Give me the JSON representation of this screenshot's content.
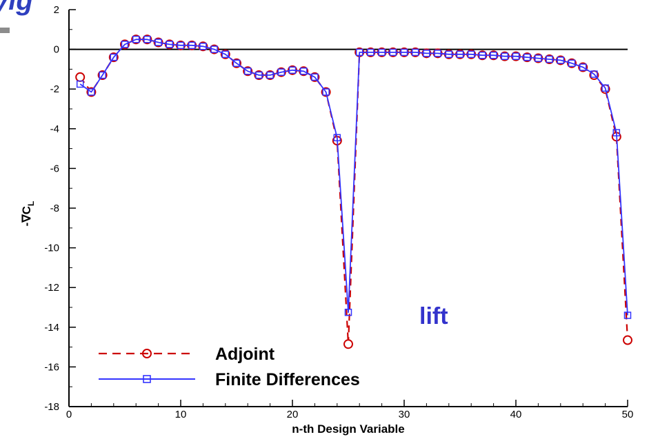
{
  "page": {
    "title_fragment": "yig"
  },
  "chart_data": {
    "type": "line",
    "xlabel": "n-th Design Variable",
    "ylabel_prefix": "-∇C",
    "ylabel_sub": "L",
    "xlim": [
      0,
      50
    ],
    "ylim": [
      -18,
      2
    ],
    "x_ticks": [
      0,
      10,
      20,
      30,
      40,
      50
    ],
    "y_ticks": [
      2,
      0,
      -2,
      -4,
      -6,
      -8,
      -10,
      -12,
      -14,
      -16,
      -18
    ],
    "grid": false,
    "legend_position": "bottom-left",
    "annotation": "lift",
    "colors": {
      "adjoint": "#cc0000",
      "finite_differences": "#3333ff",
      "annotation": "#3333cc",
      "title_fragment": "#2e3fbf"
    },
    "series": [
      {
        "name": "Adjoint",
        "style": "dashed",
        "marker": "circle",
        "x": [
          1,
          2,
          3,
          4,
          5,
          6,
          7,
          8,
          9,
          10,
          11,
          12,
          13,
          14,
          15,
          16,
          17,
          18,
          19,
          20,
          21,
          22,
          23,
          24,
          25,
          26,
          27,
          28,
          29,
          30,
          31,
          32,
          33,
          34,
          35,
          36,
          37,
          38,
          39,
          40,
          41,
          42,
          43,
          44,
          45,
          46,
          47,
          48,
          49,
          50
        ],
        "y": [
          -1.4,
          -2.15,
          -1.3,
          -0.4,
          0.25,
          0.5,
          0.5,
          0.35,
          0.25,
          0.2,
          0.2,
          0.15,
          0.0,
          -0.25,
          -0.7,
          -1.1,
          -1.3,
          -1.3,
          -1.15,
          -1.05,
          -1.1,
          -1.4,
          -2.15,
          -4.6,
          -14.85,
          -0.15,
          -0.15,
          -0.15,
          -0.15,
          -0.15,
          -0.15,
          -0.2,
          -0.2,
          -0.25,
          -0.25,
          -0.25,
          -0.3,
          -0.3,
          -0.35,
          -0.35,
          -0.4,
          -0.45,
          -0.5,
          -0.55,
          -0.7,
          -0.9,
          -1.3,
          -2.0,
          -4.4,
          -14.65
        ]
      },
      {
        "name": "Finite Differences",
        "style": "solid",
        "marker": "square",
        "x": [
          1,
          2,
          3,
          4,
          5,
          6,
          7,
          8,
          9,
          10,
          11,
          12,
          13,
          14,
          15,
          16,
          17,
          18,
          19,
          20,
          21,
          22,
          23,
          24,
          25,
          26,
          27,
          28,
          29,
          30,
          31,
          32,
          33,
          34,
          35,
          36,
          37,
          38,
          39,
          40,
          41,
          42,
          43,
          44,
          45,
          46,
          47,
          48,
          49,
          50
        ],
        "y": [
          -1.75,
          -2.15,
          -1.3,
          -0.4,
          0.25,
          0.5,
          0.5,
          0.35,
          0.25,
          0.2,
          0.2,
          0.15,
          0.0,
          -0.25,
          -0.7,
          -1.1,
          -1.3,
          -1.3,
          -1.15,
          -1.05,
          -1.1,
          -1.4,
          -2.15,
          -4.45,
          -13.25,
          -0.15,
          -0.15,
          -0.15,
          -0.15,
          -0.15,
          -0.15,
          -0.2,
          -0.2,
          -0.25,
          -0.25,
          -0.25,
          -0.3,
          -0.3,
          -0.35,
          -0.35,
          -0.4,
          -0.45,
          -0.5,
          -0.55,
          -0.7,
          -0.9,
          -1.25,
          -1.95,
          -4.2,
          -13.4
        ]
      }
    ]
  }
}
